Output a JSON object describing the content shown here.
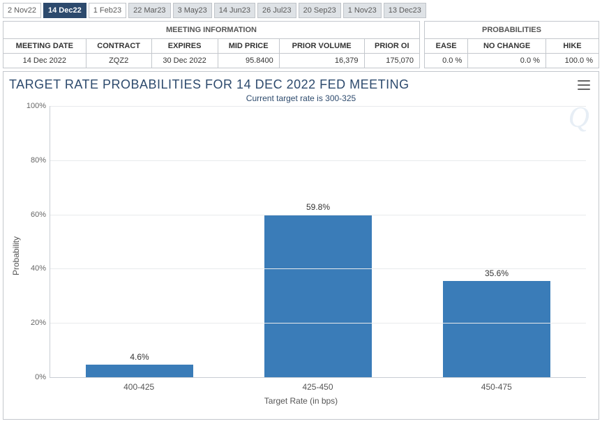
{
  "tabs": [
    {
      "label": "2 Nov22",
      "state": "light"
    },
    {
      "label": "14 Dec22",
      "state": "active"
    },
    {
      "label": "1 Feb23",
      "state": "light"
    },
    {
      "label": "22 Mar23",
      "state": "dim"
    },
    {
      "label": "3 May23",
      "state": "dim"
    },
    {
      "label": "14 Jun23",
      "state": "dim"
    },
    {
      "label": "26 Jul23",
      "state": "dim"
    },
    {
      "label": "20 Sep23",
      "state": "dim"
    },
    {
      "label": "1 Nov23",
      "state": "dim"
    },
    {
      "label": "13 Dec23",
      "state": "dim"
    }
  ],
  "meeting_info": {
    "caption": "MEETING INFORMATION",
    "headers": [
      "MEETING DATE",
      "CONTRACT",
      "EXPIRES",
      "MID PRICE",
      "PRIOR VOLUME",
      "PRIOR OI"
    ],
    "row": {
      "meeting_date": "14 Dec 2022",
      "contract": "ZQZ2",
      "expires": "30 Dec 2022",
      "mid_price": "95.8400",
      "prior_volume": "16,379",
      "prior_oi": "175,070"
    }
  },
  "probabilities": {
    "caption": "PROBABILITIES",
    "headers": [
      "EASE",
      "NO CHANGE",
      "HIKE"
    ],
    "row": {
      "ease": "0.0 %",
      "no_change": "0.0 %",
      "hike": "100.0 %"
    }
  },
  "chart": {
    "title": "TARGET RATE PROBABILITIES FOR 14 DEC 2022 FED MEETING",
    "subtitle": "Current target rate is 300-325",
    "ylabel": "Probability",
    "xlabel": "Target Rate (in bps)",
    "type": "bar",
    "bar_color": "#3a7cb8",
    "grid_color": "#e8eaec",
    "axis_color": "#c8cdd3",
    "background_color": "#ffffff",
    "ylim": [
      0,
      100
    ],
    "ytick_step": 20,
    "ytick_suffix": "%",
    "categories": [
      "400-425",
      "425-450",
      "450-475"
    ],
    "values": [
      4.6,
      59.8,
      35.6
    ],
    "value_label_suffix": "%",
    "bar_width_ratio": 0.72,
    "title_fontsize": 18,
    "label_fontsize": 12,
    "watermark": "Q"
  }
}
